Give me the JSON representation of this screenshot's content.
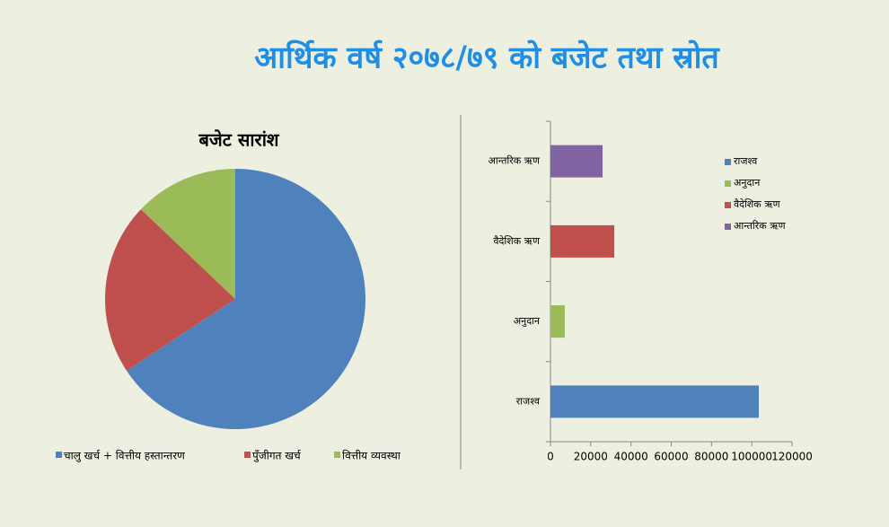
{
  "title": "आर्थिक वर्ष २०७८/७९ को बजेट तथा स्रोत",
  "chart_data": [
    {
      "type": "pie",
      "title": "बजेट सारांश",
      "categories": [
        "चालु खर्च + वित्तीय हस्तान्तरण",
        "पुँजीगत खर्च",
        "वित्तीय व्यवस्था"
      ],
      "values": [
        65.7,
        21.4,
        12.9
      ],
      "colors": [
        "#4f81bd",
        "#c0504d",
        "#9bbb59"
      ],
      "legend": "bottom"
    },
    {
      "type": "bar",
      "orientation": "horizontal",
      "categories": [
        "राजश्व",
        "अनुदान",
        "वैदेशिक ऋण",
        "आन्तरिक ऋण"
      ],
      "values": [
        103500,
        7100,
        31700,
        25900
      ],
      "colors": [
        "#4f81bd",
        "#9bbb59",
        "#c0504d",
        "#8064a2"
      ],
      "xlim": [
        0,
        120000
      ],
      "xticks": [
        0,
        20000,
        40000,
        60000,
        80000,
        100000,
        120000
      ],
      "legend": "right"
    }
  ]
}
